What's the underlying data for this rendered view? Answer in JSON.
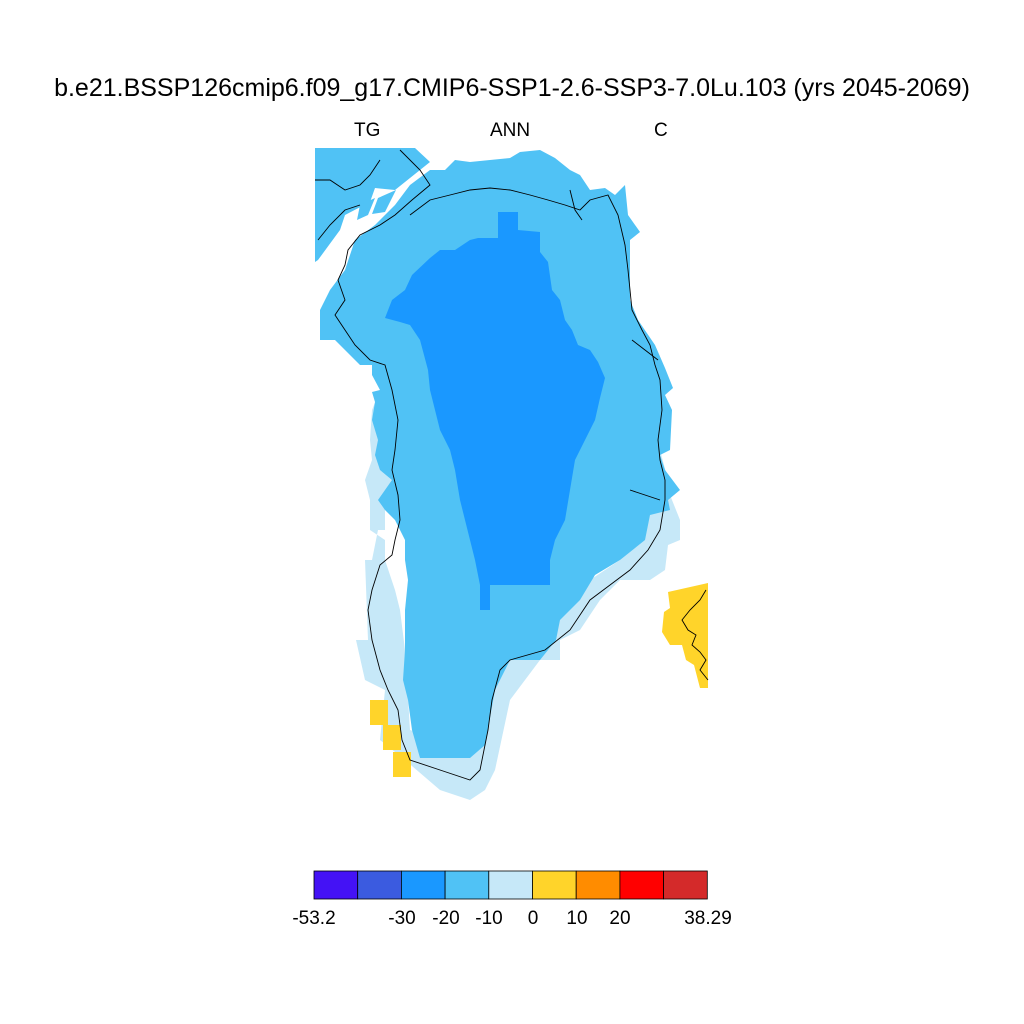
{
  "title": "b.e21.BSSP126cmip6.f09_g17.CMIP6-SSP1-2.6-SSP3-7.0Lu.103 (yrs 2045-2069)",
  "subtitle_left": "TG",
  "subtitle_center": "ANN",
  "subtitle_right": "C",
  "map": {
    "region": "Greenland",
    "coastline_color": "#000000",
    "regions": [
      {
        "name": "interior",
        "color": "#1a98ff",
        "class": "-30 to -20"
      },
      {
        "name": "margin",
        "color": "#50c2f5",
        "class": "-20 to -10"
      },
      {
        "name": "southwest coast",
        "color": "#c6e8f8",
        "class": "-10 to 0"
      },
      {
        "name": "east coast patch",
        "color": "#ffd42a",
        "class": "0 to 10"
      },
      {
        "name": "southern tip",
        "color": "#ffd42a",
        "class": "0 to 10"
      },
      {
        "name": "northwest islands",
        "color": "#50c2f5",
        "class": "-20 to -10"
      }
    ]
  },
  "colorbar": {
    "colors": [
      "#4412f5",
      "#3b5be0",
      "#1a98ff",
      "#50c2f5",
      "#c6e8f8",
      "#ffd42a",
      "#ff8c00",
      "#ff0000",
      "#d42a2a"
    ],
    "labels": [
      "-53.2",
      "-30",
      "-20",
      "-10",
      "0",
      "10",
      "20",
      "38.29"
    ]
  }
}
